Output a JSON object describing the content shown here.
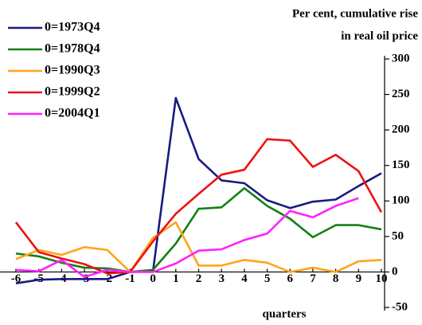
{
  "chart_data": {
    "type": "line",
    "ylabel": [
      "Per cent, cumulative rise",
      "in real oil price"
    ],
    "xlabel": "quarters",
    "x": [
      -6,
      -5,
      -4,
      -3,
      -2,
      -1,
      0,
      1,
      2,
      3,
      4,
      5,
      6,
      7,
      8,
      9,
      10
    ],
    "xlim": [
      -6,
      10
    ],
    "xticks": [
      -6,
      -5,
      -4,
      -3,
      -2,
      -1,
      0,
      1,
      2,
      3,
      4,
      5,
      6,
      7,
      8,
      9,
      10
    ],
    "ylim": [
      -50,
      300
    ],
    "yticks": [
      -50,
      0,
      50,
      100,
      150,
      200,
      250,
      300
    ],
    "legend": "upper left",
    "series": [
      {
        "name": "0=1973Q4",
        "color": "#1a1a80",
        "values": [
          -16,
          -11,
          -10,
          -10,
          -10,
          0,
          1,
          245,
          159,
          129,
          125,
          101,
          90,
          99,
          102,
          121,
          139
        ]
      },
      {
        "name": "0=1978Q4",
        "color": "#138013",
        "values": [
          26,
          22,
          13,
          6,
          5,
          0,
          3,
          40,
          89,
          91,
          118,
          93,
          75,
          49,
          66,
          66,
          60
        ]
      },
      {
        "name": "0=1990Q3",
        "color": "#ffa41a",
        "values": [
          18,
          31,
          24,
          35,
          31,
          0,
          48,
          70,
          9,
          9,
          17,
          13,
          0,
          6,
          0,
          15,
          17
        ]
      },
      {
        "name": "0=1999Q2",
        "color": "#ee1111",
        "values": [
          70,
          28,
          19,
          11,
          -2,
          0,
          43,
          82,
          110,
          137,
          144,
          187,
          185,
          148,
          165,
          142,
          84
        ]
      },
      {
        "name": "0=2004Q1",
        "color": "#ff22ff",
        "values": [
          3,
          1,
          17,
          -7,
          3,
          0,
          0,
          12,
          30,
          32,
          45,
          54,
          86,
          77,
          93,
          104,
          null
        ]
      }
    ]
  }
}
